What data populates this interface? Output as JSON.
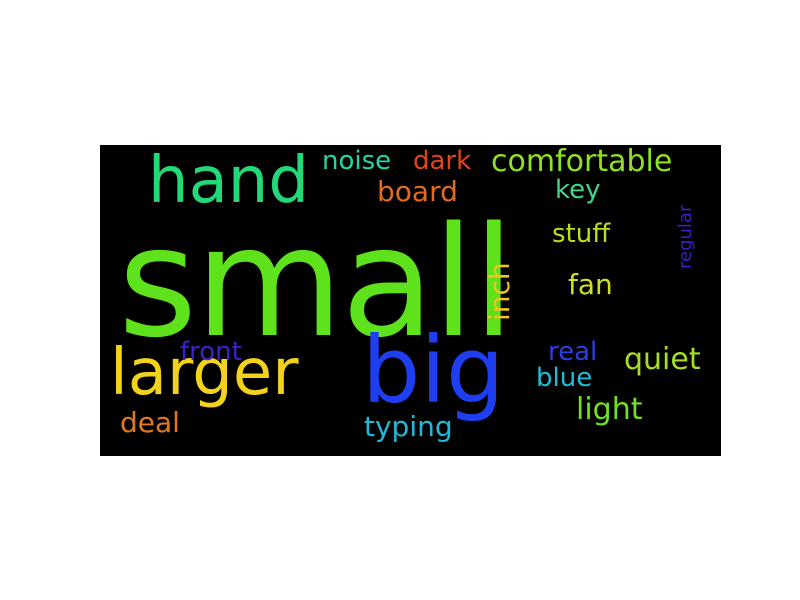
{
  "wordcloud": {
    "background": "#000000",
    "words": [
      {
        "text": "small",
        "color": "#5ee21b"
      },
      {
        "text": "hand",
        "color": "#22d877"
      },
      {
        "text": "larger",
        "color": "#f2d21a"
      },
      {
        "text": "big",
        "color": "#1f3ef2"
      },
      {
        "text": "noise",
        "color": "#22d6a4"
      },
      {
        "text": "dark",
        "color": "#e0441d"
      },
      {
        "text": "comfortable",
        "color": "#8ee21e"
      },
      {
        "text": "board",
        "color": "#e36b1f"
      },
      {
        "text": "key",
        "color": "#3ed88a"
      },
      {
        "text": "stuff",
        "color": "#b8e01f"
      },
      {
        "text": "fan",
        "color": "#d0df1f"
      },
      {
        "text": "inch",
        "color": "#f2c41f"
      },
      {
        "text": "regular",
        "color": "#3a1fc8"
      },
      {
        "text": "front",
        "color": "#3a22c8"
      },
      {
        "text": "real",
        "color": "#2b3ee0"
      },
      {
        "text": "quiet",
        "color": "#a6df1f"
      },
      {
        "text": "blue",
        "color": "#1fbdd6"
      },
      {
        "text": "light",
        "color": "#72e01f"
      },
      {
        "text": "deal",
        "color": "#e07a1f"
      },
      {
        "text": "typing",
        "color": "#1fb8d6"
      }
    ]
  }
}
